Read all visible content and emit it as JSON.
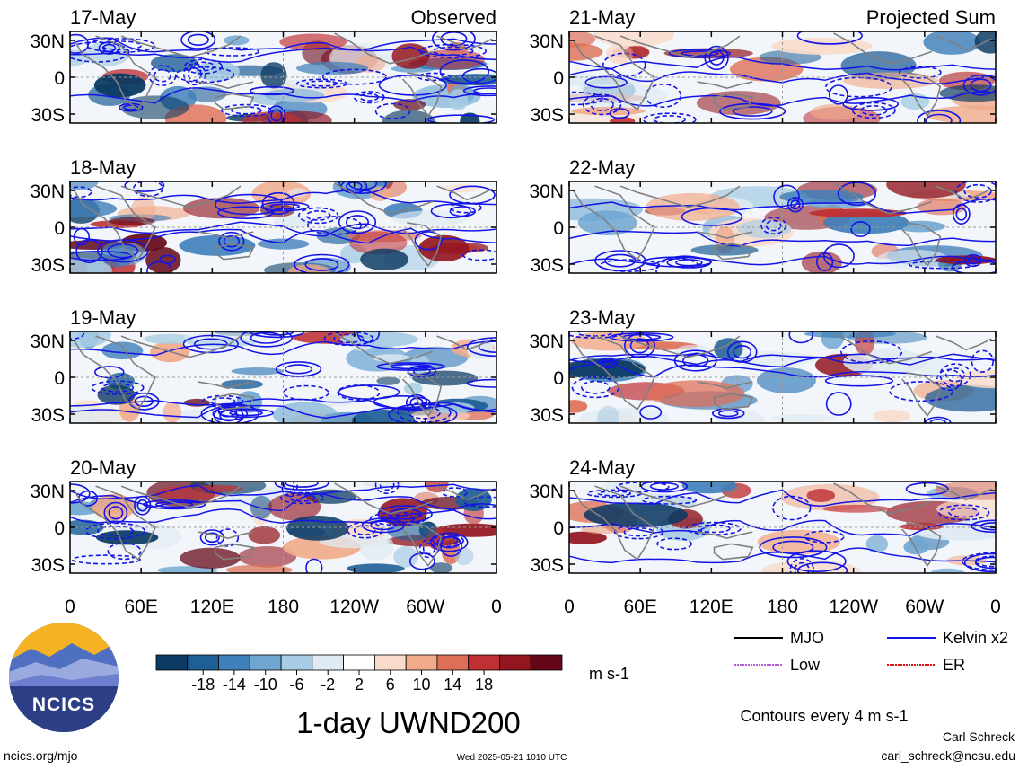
{
  "chart_data": {
    "type": "heatmap",
    "title": "1-day UWND200",
    "colorbar": {
      "unit": "m s-1",
      "tick_labels": [
        "-18",
        "-14",
        "-10",
        "-6",
        "-2",
        "2",
        "6",
        "10",
        "14",
        "18"
      ],
      "colors": [
        "#0b3a63",
        "#1f5f97",
        "#3f7fba",
        "#6ea6d1",
        "#a7cce4",
        "#dfeaf3",
        "#ffffff",
        "#f9dccb",
        "#f1ab8b",
        "#de6f57",
        "#bf2f33",
        "#93151f",
        "#650718"
      ]
    },
    "x_tick_labels": [
      "0",
      "60E",
      "120E",
      "180",
      "120W",
      "60W",
      "0"
    ],
    "y_tick_labels": [
      "30N",
      "0",
      "30S"
    ],
    "panels": [
      {
        "date": "17-May",
        "header": "Observed"
      },
      {
        "date": "18-May",
        "header": ""
      },
      {
        "date": "19-May",
        "header": ""
      },
      {
        "date": "20-May",
        "header": ""
      },
      {
        "date": "21-May",
        "header": "Projected Sum"
      },
      {
        "date": "22-May",
        "header": ""
      },
      {
        "date": "23-May",
        "header": ""
      },
      {
        "date": "24-May",
        "header": ""
      }
    ],
    "legend": [
      {
        "label": "MJO",
        "color": "#000000"
      },
      {
        "label": "Kelvin x2",
        "color": "#1414e6"
      },
      {
        "label": "Low",
        "color": "#b45ad2"
      },
      {
        "label": "ER",
        "color": "#e01010"
      }
    ],
    "contour_note": "Contours every 4 m s-1"
  },
  "logo": {
    "text": "NCICS"
  },
  "footer": {
    "url": "ncics.org/mjo",
    "timestamp": "Wed 2025-05-21 1010 UTC",
    "author": "Carl Schreck",
    "email": "carl_schreck@ncsu.edu"
  }
}
